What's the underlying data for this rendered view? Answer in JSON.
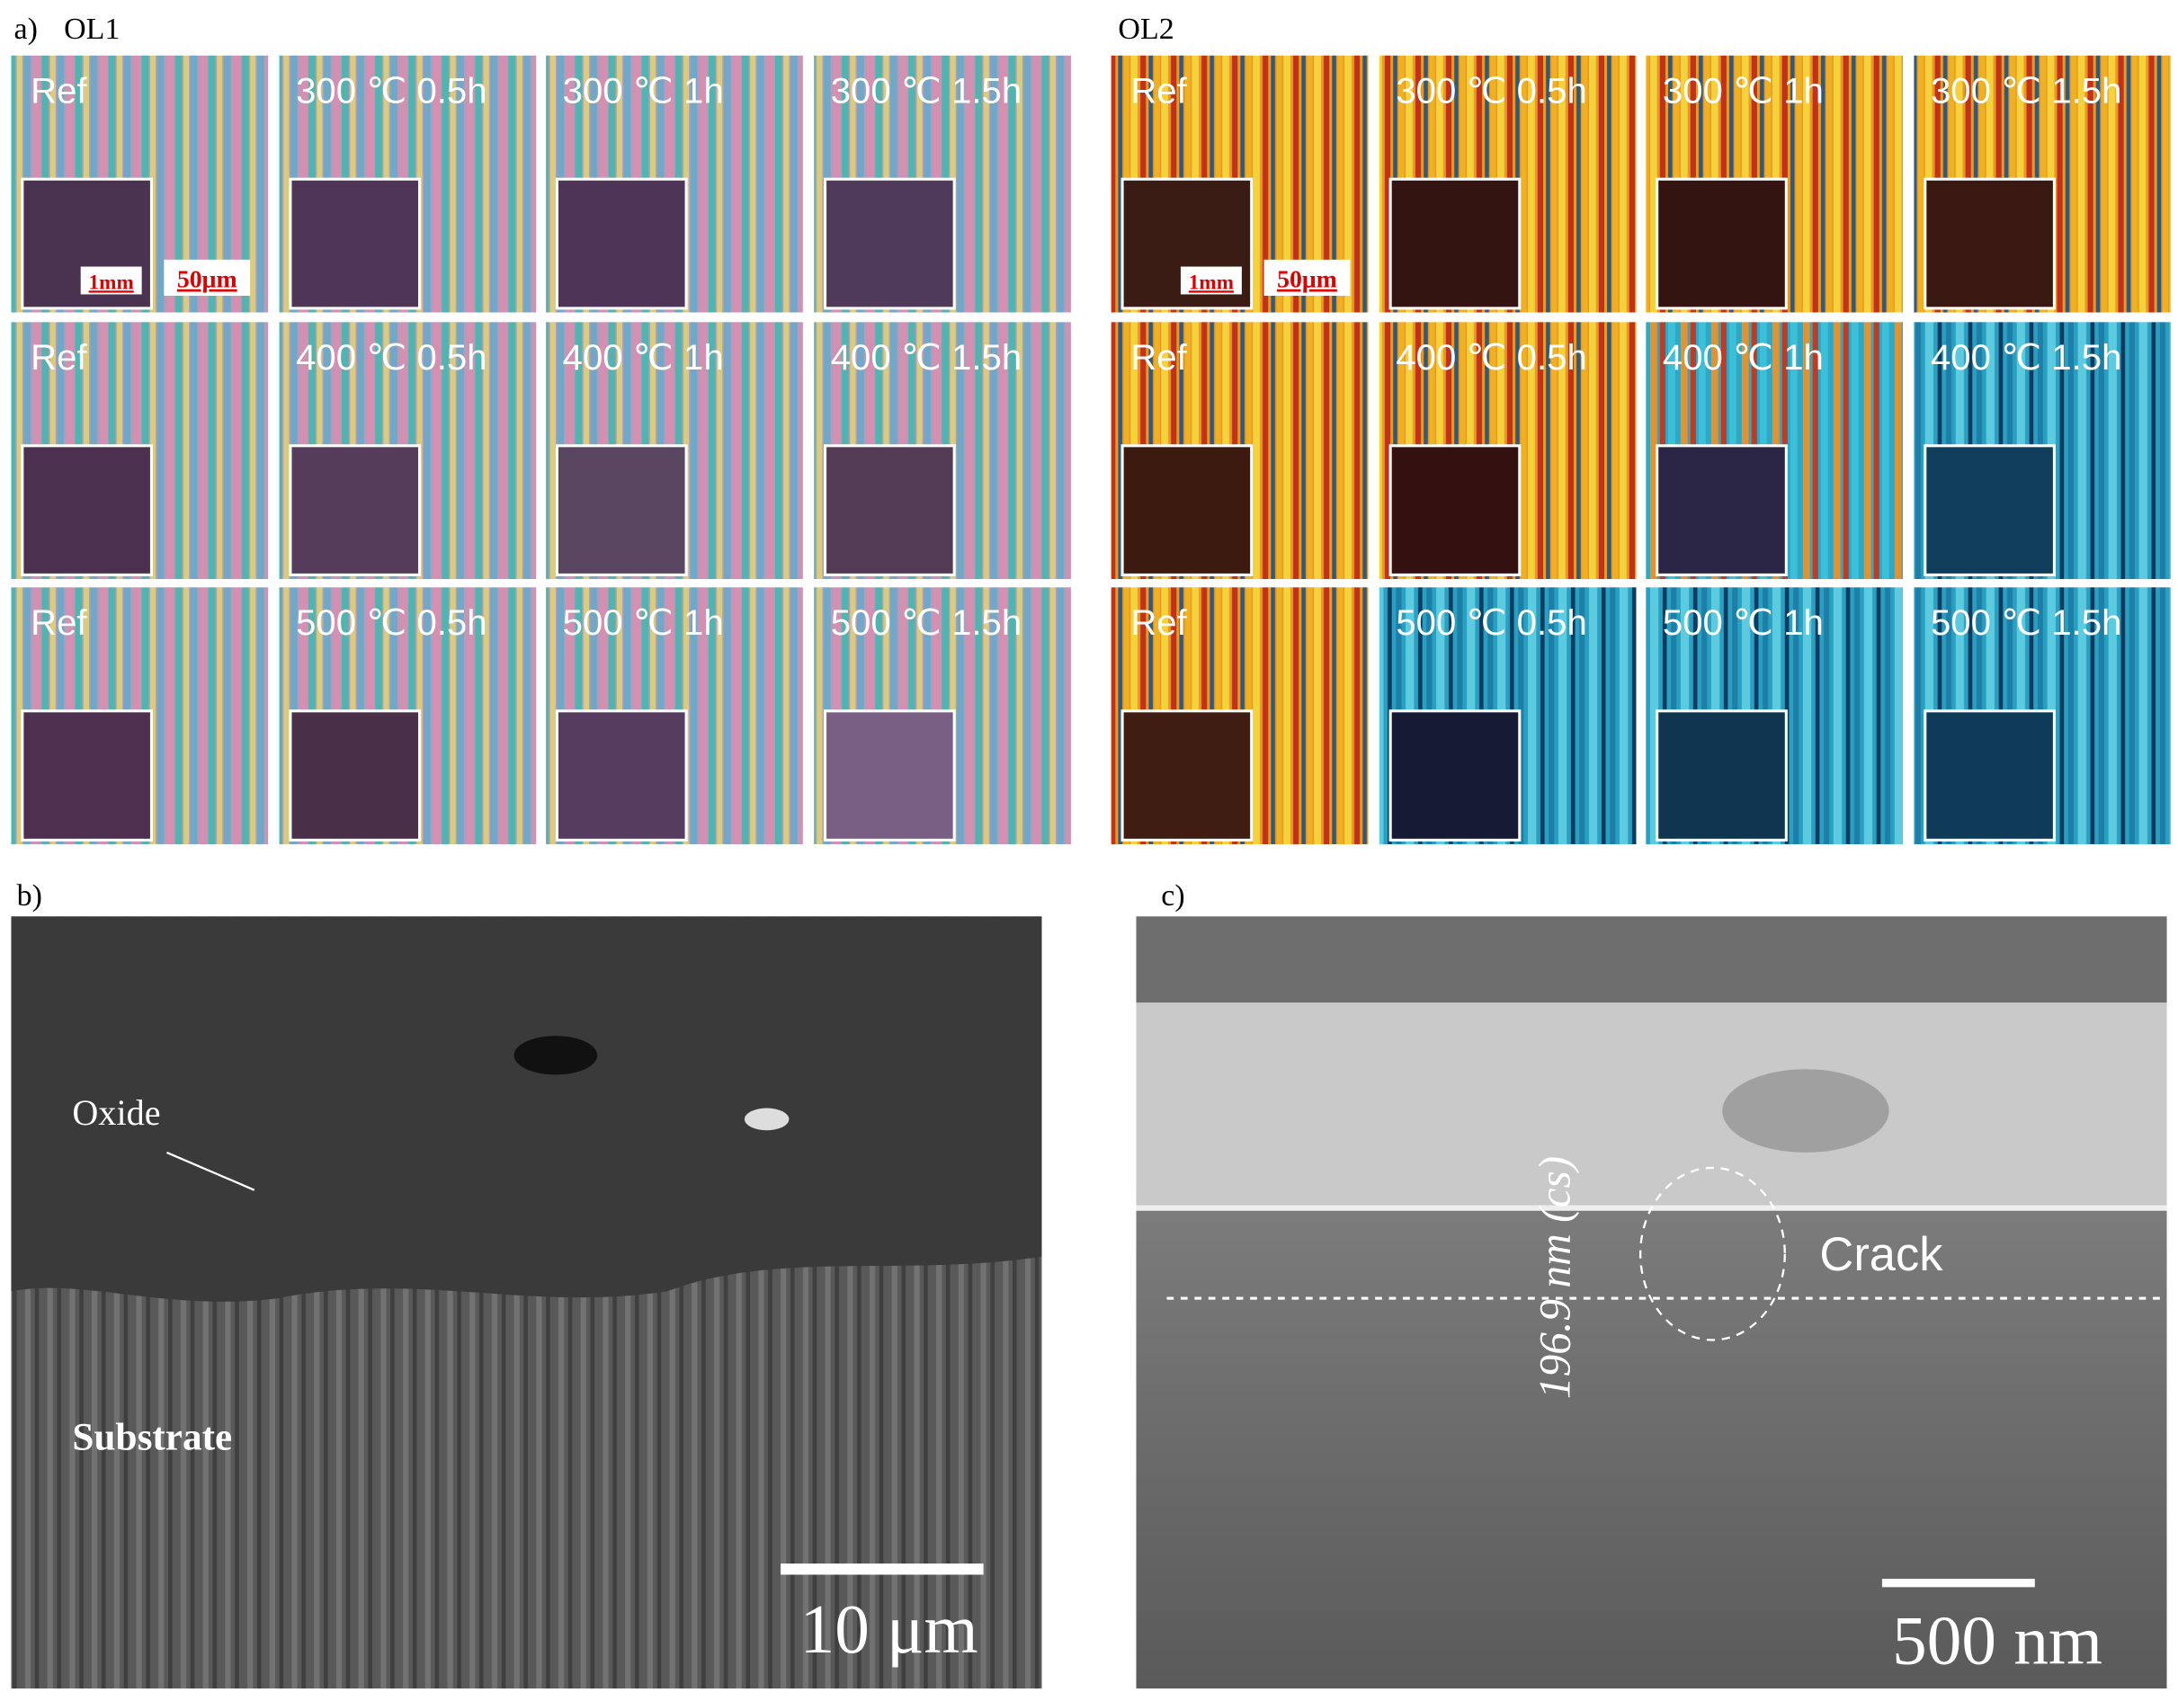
{
  "panel_a": {
    "label": "a)",
    "groups": [
      {
        "title": "OL1",
        "scale_labels": [
          "1mm",
          "50μm"
        ],
        "rows": [
          [
            {
              "label": "Ref",
              "inset": "#4a3350"
            },
            {
              "label": "300 ℃ 0.5h",
              "inset": "#4f3656"
            },
            {
              "label": "300 ℃  1h",
              "inset": "#4e3558"
            },
            {
              "label": "300 ℃ 1.5h",
              "inset": "#4f3a5a"
            }
          ],
          [
            {
              "label": "Ref",
              "inset": "#4b3050"
            },
            {
              "label": "400 ℃ 0.5h",
              "inset": "#553c5a"
            },
            {
              "label": "400 ℃  1h",
              "inset": "#594560"
            },
            {
              "label": "400 ℃ 1.5h",
              "inset": "#533b55"
            }
          ],
          [
            {
              "label": "Ref",
              "inset": "#4d3050"
            },
            {
              "label": "500 ℃ 0.5h",
              "inset": "#4a2f48"
            },
            {
              "label": "500 ℃  1h",
              "inset": "#563c5e"
            },
            {
              "label": "500 ℃  1.5h",
              "inset": "#7a5f85"
            }
          ]
        ]
      },
      {
        "title": "OL2",
        "scale_labels": [
          "1mm",
          "50μm"
        ],
        "rows": [
          [
            {
              "label": "Ref",
              "inset": "#3a1c14"
            },
            {
              "label": "300 ℃ 0.5h",
              "inset": "#331410"
            },
            {
              "label": "300 ℃  1h",
              "inset": "#331410"
            },
            {
              "label": "300 ℃ 1.5h",
              "inset": "#3a1812"
            }
          ],
          [
            {
              "label": "Ref",
              "inset": "#3c1a10"
            },
            {
              "label": "400 ℃ 0.5h",
              "inset": "#341010"
            },
            {
              "label": "400 ℃  1h",
              "inset": "#2a2445"
            },
            {
              "label": "400 ℃ 1.5h",
              "inset": "#0f3d5a"
            }
          ],
          [
            {
              "label": "Ref",
              "inset": "#3f1d12"
            },
            {
              "label": "500 ℃ 0.5h",
              "inset": "#161a35"
            },
            {
              "label": "500 ℃  1h",
              "inset": "#0f3550"
            },
            {
              "label": "500 ℃ 1.5h",
              "inset": "#0f3a58"
            }
          ]
        ]
      }
    ]
  },
  "panel_b": {
    "label": "b)",
    "oxide": "Oxide",
    "substrate": "Substrate",
    "scale_bar": "10 μm"
  },
  "panel_c": {
    "label": "c)",
    "thickness": "196.9 nm (cs)",
    "crack": "Crack",
    "scale_bar": "500 nm"
  }
}
